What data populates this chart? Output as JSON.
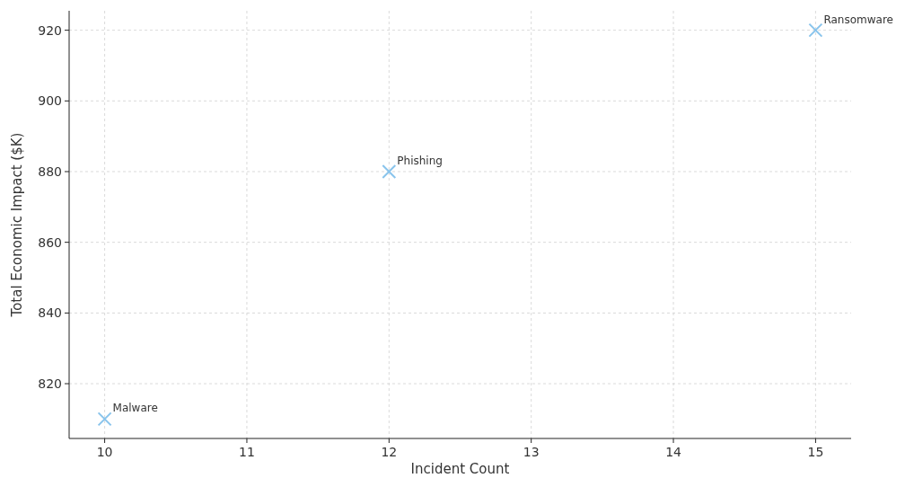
{
  "chart_data": {
    "type": "scatter",
    "xlabel": "Incident Count",
    "ylabel": "Total Economic Impact ($K)",
    "x": [
      10,
      12,
      15
    ],
    "values": [
      810,
      880,
      920
    ],
    "color": "#89c4ec",
    "marker": "cross",
    "xlim": [
      9.75,
      15.25
    ],
    "ylim": [
      804.5,
      925.5
    ],
    "xticks": [
      10,
      11,
      12,
      13,
      14,
      15
    ],
    "yticks": [
      820,
      840,
      860,
      880,
      900,
      920
    ],
    "grid": true,
    "annotations": [
      {
        "text": "Malware",
        "x": 10,
        "y": 810
      },
      {
        "text": "Phishing",
        "x": 12,
        "y": 880
      },
      {
        "text": "Ransomware",
        "x": 15,
        "y": 920
      }
    ]
  }
}
